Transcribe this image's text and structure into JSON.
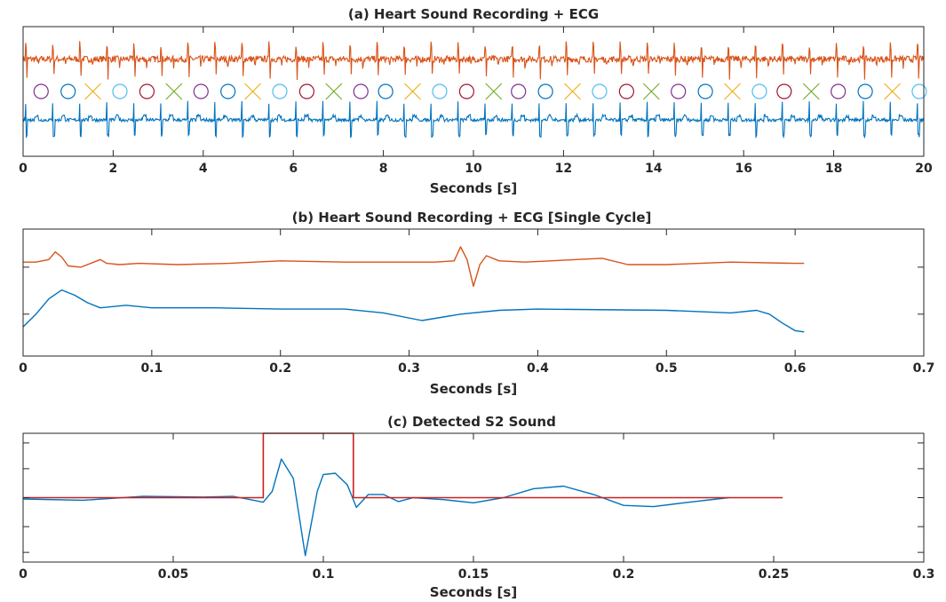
{
  "colors": {
    "pcg": "#d95319",
    "ecg": "#0072bd",
    "s2_box": "#cc1f1f",
    "axes": "#262626",
    "markers": [
      "#7e2f8e",
      "#0072bd",
      "#edb120",
      "#4dbeee",
      "#a2142f",
      "#77ac30"
    ]
  },
  "chart_data": [
    {
      "id": "a",
      "type": "line",
      "title": "(a) Heart Sound Recording + ECG",
      "xlabel": "Seconds [s]",
      "ylabel": "",
      "xlim": [
        0,
        20
      ],
      "xticks": [
        0,
        2,
        4,
        6,
        8,
        10,
        12,
        14,
        16,
        18,
        20
      ],
      "grid": false,
      "yticks_visible": false,
      "beat_interval_s": 0.6,
      "series": [
        {
          "key": "pcg",
          "kind": "heart-sound-recording",
          "baseline": 0.75,
          "color_key": "pcg"
        },
        {
          "key": "ecg",
          "kind": "ecg",
          "baseline": 0.28,
          "color_key": "ecg"
        }
      ],
      "markers": {
        "y": 0.5,
        "x": [
          0.4,
          1.0,
          1.55,
          2.15,
          2.75,
          3.35,
          3.95,
          4.55,
          5.1,
          5.7,
          6.3,
          6.9,
          7.5,
          8.05,
          8.65,
          9.25,
          9.85,
          10.45,
          11.0,
          11.6,
          12.2,
          12.8,
          13.4,
          13.95,
          14.55,
          15.15,
          15.75,
          16.35,
          16.9,
          17.5,
          18.1,
          18.7,
          19.3,
          19.9
        ],
        "shapes": [
          "circle",
          "circle",
          "x",
          "circle",
          "circle",
          "x",
          "circle",
          "circle",
          "x",
          "circle",
          "circle",
          "x",
          "circle",
          "circle",
          "x",
          "circle",
          "circle",
          "x",
          "circle",
          "circle",
          "x",
          "circle",
          "circle",
          "x",
          "circle",
          "circle",
          "x",
          "circle",
          "circle",
          "x",
          "circle",
          "circle",
          "x",
          "circle"
        ]
      }
    },
    {
      "id": "b",
      "type": "line",
      "title": "(b) Heart Sound Recording + ECG [Single Cycle]",
      "xlabel": "Seconds [s]",
      "ylabel": "",
      "xlim": [
        0,
        0.7
      ],
      "xticks": [
        0,
        0.1,
        0.2,
        0.3,
        0.4,
        0.5,
        0.6,
        0.7
      ],
      "ylim": [
        0,
        1
      ],
      "grid": false,
      "yticks_visible": false,
      "series": [
        {
          "key": "pcg",
          "color_key": "pcg",
          "x": [
            0,
            0.01,
            0.02,
            0.025,
            0.03,
            0.035,
            0.045,
            0.055,
            0.06,
            0.065,
            0.075,
            0.09,
            0.12,
            0.16,
            0.2,
            0.25,
            0.3,
            0.32,
            0.335,
            0.34,
            0.345,
            0.35,
            0.355,
            0.36,
            0.37,
            0.39,
            0.41,
            0.43,
            0.45,
            0.47,
            0.5,
            0.55,
            0.6,
            0.607
          ],
          "y": [
            0.74,
            0.74,
            0.76,
            0.82,
            0.78,
            0.71,
            0.7,
            0.74,
            0.76,
            0.73,
            0.72,
            0.73,
            0.72,
            0.73,
            0.75,
            0.74,
            0.74,
            0.74,
            0.75,
            0.86,
            0.76,
            0.55,
            0.72,
            0.79,
            0.75,
            0.74,
            0.75,
            0.76,
            0.77,
            0.72,
            0.72,
            0.74,
            0.73,
            0.73
          ]
        },
        {
          "key": "ecg",
          "color_key": "ecg",
          "x": [
            0,
            0.01,
            0.02,
            0.03,
            0.04,
            0.05,
            0.06,
            0.08,
            0.1,
            0.15,
            0.2,
            0.25,
            0.28,
            0.31,
            0.34,
            0.37,
            0.4,
            0.5,
            0.55,
            0.57,
            0.58,
            0.59,
            0.6,
            0.607
          ],
          "y": [
            0.23,
            0.33,
            0.45,
            0.52,
            0.48,
            0.42,
            0.38,
            0.4,
            0.38,
            0.38,
            0.37,
            0.37,
            0.34,
            0.28,
            0.33,
            0.36,
            0.37,
            0.36,
            0.34,
            0.36,
            0.33,
            0.26,
            0.2,
            0.19
          ]
        }
      ]
    },
    {
      "id": "c",
      "type": "line",
      "title": "(c) Detected S2 Sound",
      "xlabel": "Seconds [s]",
      "ylabel": "",
      "xlim": [
        0,
        0.3
      ],
      "xticks": [
        0,
        0.05,
        0.1,
        0.15,
        0.2,
        0.25,
        0.3
      ],
      "ylim": [
        -1,
        1
      ],
      "yticks": [
        -0.85,
        -0.45,
        0,
        0.45,
        0.85
      ],
      "grid": false,
      "yticks_visible": false,
      "series": [
        {
          "key": "s2_signal",
          "color_key": "ecg",
          "x": [
            0,
            0.02,
            0.04,
            0.06,
            0.07,
            0.08,
            0.083,
            0.086,
            0.09,
            0.094,
            0.098,
            0.1,
            0.104,
            0.108,
            0.111,
            0.115,
            0.12,
            0.125,
            0.13,
            0.14,
            0.15,
            0.16,
            0.17,
            0.18,
            0.19,
            0.2,
            0.21,
            0.22,
            0.235
          ],
          "y": [
            -0.02,
            -0.04,
            0.02,
            0.01,
            0.02,
            -0.07,
            0.1,
            0.6,
            0.3,
            -0.9,
            0.1,
            0.36,
            0.38,
            0.2,
            -0.15,
            0.05,
            0.05,
            -0.06,
            0.0,
            -0.03,
            -0.08,
            0.0,
            0.14,
            0.18,
            0.05,
            -0.12,
            -0.14,
            -0.08,
            0.0
          ]
        },
        {
          "key": "s2_detection",
          "color_key": "s2_box",
          "x": [
            0,
            0.08,
            0.08,
            0.11,
            0.11,
            0.253
          ],
          "y": [
            0,
            0,
            1,
            1,
            0,
            0
          ]
        }
      ]
    }
  ]
}
